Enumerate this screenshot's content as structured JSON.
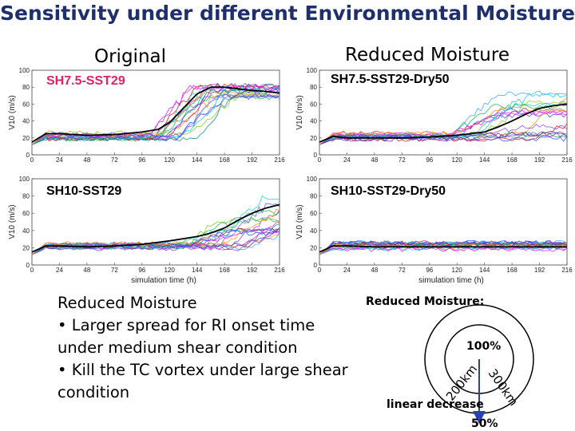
{
  "title": "Sensitivity under different Environmental Moisture",
  "column_headers": {
    "left": "Original",
    "right": "Reduced Moisture"
  },
  "text": {
    "heading": "Reduced Moisture",
    "bullets": [
      "• Larger spread for RI onset time",
      "under medium shear condition",
      "• Kill the TC vortex under large shear",
      "condition"
    ]
  },
  "diagram": {
    "title": "Reduced Moisture:",
    "inner_label": "100%",
    "label_200": "200km",
    "label_300": "300km",
    "decrease_label": "linear decrease",
    "outer_label": "50%"
  },
  "chart_data": [
    {
      "type": "line",
      "title": "SH7.5-SST29",
      "title_color": "#e0206a",
      "xlabel": "",
      "ylabel": "V10 (m/s)",
      "xticks": [
        "0",
        "24",
        "48",
        "72",
        "96",
        "120",
        "144",
        "168",
        "192",
        "216"
      ],
      "yticks": [
        "0",
        "20",
        "40",
        "60",
        "80",
        "100"
      ],
      "xlim": [
        0,
        216
      ],
      "ylim": [
        0,
        100
      ],
      "mean_series": {
        "name": "mean",
        "x": [
          0,
          12,
          24,
          48,
          72,
          96,
          110,
          120,
          132,
          144,
          156,
          168,
          180,
          192,
          204,
          216
        ],
        "values": [
          15,
          25,
          25,
          23,
          24,
          27,
          30,
          38,
          55,
          72,
          80,
          80,
          78,
          76,
          75,
          73
        ]
      },
      "ensemble": {
        "onset_min": 96,
        "onset_max": 156,
        "final_min": 68,
        "final_max": 82
      }
    },
    {
      "type": "line",
      "title": "SH7.5-SST29-Dry50",
      "title_color": "#000000",
      "xlabel": "",
      "ylabel": "V10 (m/s)",
      "xticks": [
        "0",
        "24",
        "48",
        "72",
        "96",
        "120",
        "144",
        "168",
        "192",
        "216"
      ],
      "yticks": [
        "0",
        "20",
        "40",
        "60",
        "80",
        "100"
      ],
      "xlim": [
        0,
        216
      ],
      "ylim": [
        0,
        100
      ],
      "mean_series": {
        "name": "mean",
        "x": [
          0,
          12,
          24,
          48,
          72,
          96,
          120,
          144,
          156,
          168,
          180,
          192,
          204,
          216
        ],
        "values": [
          15,
          22,
          20,
          20,
          20,
          21,
          23,
          27,
          33,
          40,
          48,
          55,
          58,
          60
        ]
      },
      "ensemble": {
        "onset_min": 96,
        "onset_max": 216,
        "final_min": 20,
        "final_max": 80
      }
    },
    {
      "type": "line",
      "title": "SH10-SST29",
      "title_color": "#000000",
      "xlabel": "simulation time (h)",
      "ylabel": "V10 (m/s)",
      "xticks": [
        "0",
        "24",
        "48",
        "72",
        "96",
        "120",
        "144",
        "168",
        "192",
        "216"
      ],
      "yticks": [
        "0",
        "20",
        "40",
        "60",
        "80",
        "100"
      ],
      "xlim": [
        0,
        216
      ],
      "ylim": [
        0,
        100
      ],
      "mean_series": {
        "name": "mean",
        "x": [
          0,
          12,
          24,
          48,
          72,
          96,
          120,
          144,
          156,
          168,
          180,
          192,
          204,
          216
        ],
        "values": [
          15,
          22,
          22,
          21,
          22,
          24,
          28,
          33,
          37,
          43,
          52,
          60,
          66,
          70
        ]
      },
      "ensemble": {
        "onset_min": 120,
        "onset_max": 192,
        "final_min": 35,
        "final_max": 80
      }
    },
    {
      "type": "line",
      "title": "SH10-SST29-Dry50",
      "title_color": "#000000",
      "xlabel": "simulation time (h)",
      "ylabel": "V10 (m/s)",
      "xticks": [
        "0",
        "24",
        "48",
        "72",
        "96",
        "120",
        "144",
        "168",
        "192",
        "216"
      ],
      "yticks": [
        "0",
        "20",
        "40",
        "60",
        "80",
        "100"
      ],
      "xlim": [
        0,
        216
      ],
      "ylim": [
        0,
        100
      ],
      "mean_series": {
        "name": "mean",
        "x": [
          0,
          12,
          24,
          48,
          72,
          96,
          120,
          144,
          168,
          192,
          216
        ],
        "values": [
          15,
          22,
          22,
          21,
          21,
          21,
          21,
          21,
          21,
          21,
          21
        ]
      },
      "ensemble": {
        "onset_min": null,
        "onset_max": null,
        "final_min": 18,
        "final_max": 26
      }
    }
  ]
}
